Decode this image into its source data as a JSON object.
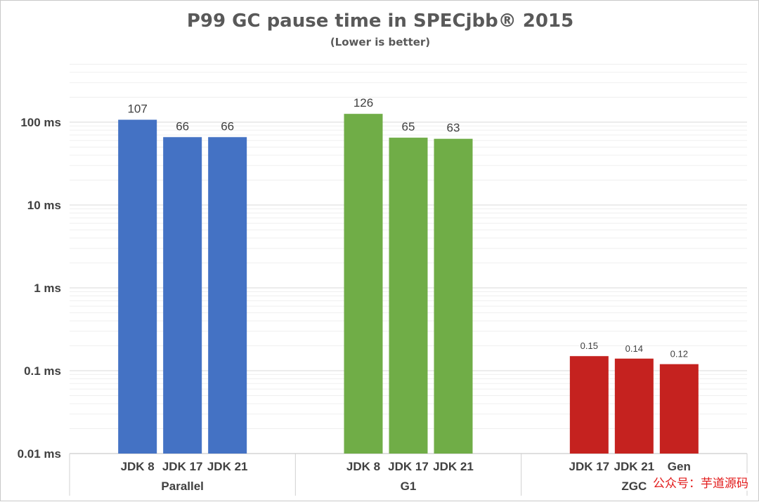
{
  "chart_data": {
    "type": "bar",
    "title": "P99 GC pause time in SPECjbb® 2015",
    "subtitle": "(Lower is better)",
    "yscale": "log",
    "ylim": [
      0.01,
      1000
    ],
    "y_ticks": [
      {
        "value": 100,
        "label": "100 ms"
      },
      {
        "value": 10,
        "label": "10 ms"
      },
      {
        "value": 1,
        "label": "1 ms"
      },
      {
        "value": 0.1,
        "label": "0.1 ms"
      },
      {
        "value": 0.01,
        "label": "0.01 ms"
      }
    ],
    "grid": "on",
    "legend": "none",
    "groups": [
      {
        "name": "Parallel",
        "color": "#4472c4",
        "bars": [
          {
            "category": "JDK 8",
            "value": 107,
            "label": "107"
          },
          {
            "category": "JDK 17",
            "value": 66,
            "label": "66"
          },
          {
            "category": "JDK 21",
            "value": 66,
            "label": "66"
          }
        ]
      },
      {
        "name": "G1",
        "color": "#70ad47",
        "bars": [
          {
            "category": "JDK 8",
            "value": 126,
            "label": "126"
          },
          {
            "category": "JDK 17",
            "value": 65,
            "label": "65"
          },
          {
            "category": "JDK 21",
            "value": 63,
            "label": "63"
          }
        ]
      },
      {
        "name": "ZGC",
        "color": "#c5221f",
        "bars": [
          {
            "category": "JDK 17",
            "value": 0.15,
            "label": "0.15"
          },
          {
            "category": "JDK 21",
            "value": 0.14,
            "label": "0.14"
          },
          {
            "category": "Gen",
            "value": 0.12,
            "label": "0.12"
          }
        ]
      }
    ]
  },
  "watermark": "公众号：芋道源码"
}
